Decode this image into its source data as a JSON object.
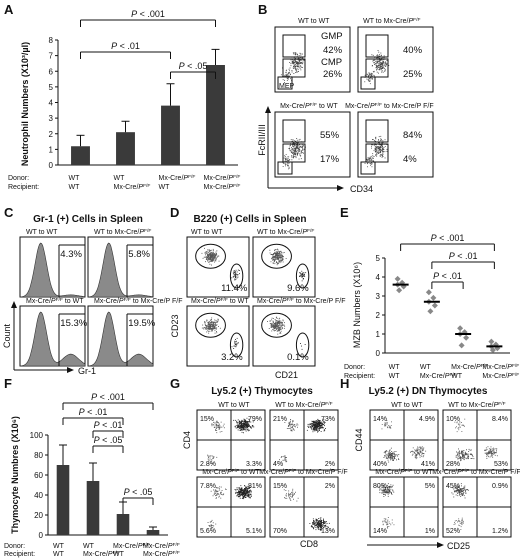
{
  "figure": {
    "panel_letters": [
      "A",
      "B",
      "C",
      "D",
      "E",
      "F",
      "G",
      "H"
    ]
  },
  "colors": {
    "bar": "#3a3a3a",
    "diamond": "#888888",
    "median": "#000000",
    "histogram": "#8a8a8a"
  },
  "axes_common": {
    "donor_label": "Donor:",
    "recipient_label": "Recipient:"
  },
  "chart_data": [
    {
      "panel": "A",
      "type": "bar",
      "ylabel": "Neutrophil Numbers (X10³/µl)",
      "ylim": [
        0,
        8
      ],
      "yticks": [
        "0",
        "1",
        "2",
        "3",
        "4",
        "5",
        "6",
        "7",
        "8"
      ],
      "categories": [
        {
          "donor": "WT",
          "recipient": "WT"
        },
        {
          "donor": "WT",
          "recipient": "Mx-Cre/P F/F"
        },
        {
          "donor": "Mx-Cre/P F/F",
          "recipient": "WT"
        },
        {
          "donor": "Mx-Cre/P F/F",
          "recipient": "Mx-Cre/P F/F"
        }
      ],
      "values": [
        1.2,
        2.1,
        3.8,
        6.4
      ],
      "errors": [
        0.7,
        0.7,
        1.4,
        1.0
      ],
      "brackets": [
        {
          "from": 0,
          "to": 3,
          "label": "P < .001"
        },
        {
          "from": 0,
          "to": 2,
          "label": "P < .01"
        },
        {
          "from": 2,
          "to": 3,
          "label": "P < .05"
        }
      ]
    },
    {
      "panel": "B",
      "type": "scatter",
      "ylabel": "FcRII/III",
      "xlabel": "CD34",
      "plots": [
        {
          "title": "WT to WT",
          "labels": [
            "GMP",
            "CMP",
            "MEP"
          ],
          "values": [
            "42%",
            "26%"
          ]
        },
        {
          "title": "WT to Mx-Cre/P F/F",
          "values": [
            "40%",
            "25%"
          ]
        },
        {
          "title": "Mx-Cre/P F/F to WT",
          "values": [
            "55%",
            "17%"
          ]
        },
        {
          "title": "Mx-Cre/P F/F to Mx-Cre/P F/F",
          "values": [
            "84%",
            "4%"
          ]
        }
      ]
    },
    {
      "panel": "C",
      "type": "area",
      "title": "Gr-1 (+) Cells in Spleen",
      "ylabel": "Count",
      "xlabel": "Gr-1",
      "plots": [
        {
          "title": "WT to WT",
          "value": "4.3%"
        },
        {
          "title": "WT to Mx-Cre/P F/F",
          "value": "5.8%"
        },
        {
          "title": "Mx-Cre/P F/F to WT",
          "value": "15.3%"
        },
        {
          "title": "Mx-Cre/P F/F to Mx-Cre/P F/F",
          "value": "19.5%"
        }
      ]
    },
    {
      "panel": "D",
      "type": "scatter",
      "title": "B220 (+) Cells in Spleen",
      "ylabel": "CD23",
      "xlabel": "CD21",
      "plots": [
        {
          "title": "WT to WT",
          "value": "11.4%"
        },
        {
          "title": "WT to Mx-Cre/P F/F",
          "value": "9.6%"
        },
        {
          "title": "Mx-Cre/P F/F to WT",
          "value": "3.2%"
        },
        {
          "title": "Mx-Cre/P F/F to Mx-Cre/P F/F",
          "value": "0.1%"
        }
      ]
    },
    {
      "panel": "E",
      "type": "scatter",
      "ylabel": "MZB Numbers (X10⁶)",
      "ylim": [
        0,
        5
      ],
      "yticks": [
        "0",
        "1",
        "2",
        "3",
        "4",
        "5"
      ],
      "categories": [
        {
          "donor": "WT",
          "recipient": "WT"
        },
        {
          "donor": "WT",
          "recipient": "Mx-Cre/P F/F"
        },
        {
          "donor": "Mx-Cre/P F/F",
          "recipient": "WT"
        },
        {
          "donor": "Mx-Cre/P F/F",
          "recipient": "Mx-Cre/P F/F"
        }
      ],
      "points": [
        [
          3.3,
          3.5,
          3.6,
          3.7,
          3.9
        ],
        [
          2.2,
          2.5,
          2.7,
          2.9,
          3.2
        ],
        [
          0.4,
          0.8,
          1.0,
          1.1,
          1.3
        ],
        [
          0.15,
          0.25,
          0.35,
          0.45,
          0.6
        ]
      ],
      "medians": [
        3.6,
        2.7,
        1.0,
        0.35
      ],
      "brackets": [
        {
          "from": 0,
          "to": 3,
          "label": "P < .001"
        },
        {
          "from": 1,
          "to": 3,
          "label": "P < .01"
        },
        {
          "from": 1,
          "to": 2,
          "label": "P < .01"
        }
      ]
    },
    {
      "panel": "F",
      "type": "bar",
      "ylabel": "Thymocyte Numbres (X10⁶)",
      "ylim": [
        0,
        100
      ],
      "yticks": [
        "0",
        "20",
        "40",
        "60",
        "80",
        "100"
      ],
      "categories": [
        {
          "donor": "WT",
          "recipient": "WT"
        },
        {
          "donor": "WT",
          "recipient": "Mx-Cre/P F/F"
        },
        {
          "donor": "Mx-Cre/P F/F",
          "recipient": "WT"
        },
        {
          "donor": "Mx-Cre/P F/F",
          "recipient": "Mx-Cre/P F/F"
        }
      ],
      "values": [
        70,
        54,
        21,
        5
      ],
      "errors": [
        20,
        18,
        12,
        3
      ],
      "brackets": [
        {
          "from": 0,
          "to": 3,
          "label": "P < .001"
        },
        {
          "from": 0,
          "to": 2,
          "label": "P < .01"
        },
        {
          "from": 1,
          "to": 2,
          "label": "P < .01"
        },
        {
          "from": 1,
          "to": 2,
          "label": "P < .05"
        },
        {
          "from": 2,
          "to": 3,
          "label": "P < .05"
        }
      ]
    },
    {
      "panel": "G",
      "type": "scatter",
      "title": "Ly5.2 (+) Thymocytes",
      "ylabel": "CD4",
      "xlabel": "CD8",
      "plots": [
        {
          "title": "WT to WT",
          "quadrants": [
            "15%",
            "79%",
            "2.8%",
            "3.3%"
          ]
        },
        {
          "title": "WT to Mx-Cre/P F/F",
          "quadrants": [
            "21%",
            "73%",
            "4%",
            "2%"
          ]
        },
        {
          "title": "Mx-Cre/P F/F to WT",
          "quadrants": [
            "7.8%",
            "81%",
            "5.6%",
            "5.1%"
          ]
        },
        {
          "title": "Mx-Cre/P F/F to Mx-Cre/P F/F",
          "quadrants": [
            "15%",
            "2%",
            "70%",
            "13%"
          ]
        }
      ]
    },
    {
      "panel": "H",
      "type": "scatter",
      "title": "Ly5.2 (+) DN Thymocytes",
      "ylabel": "CD44",
      "xlabel": "CD25",
      "plots": [
        {
          "title": "WT to WT",
          "quadrants": [
            "14%",
            "4.9%",
            "40%",
            "41%"
          ]
        },
        {
          "title": "WT to Mx-Cre/P F/F",
          "quadrants": [
            "10%",
            "8.4%",
            "28%",
            "53%"
          ]
        },
        {
          "title": "Mx-Cre/P F/F to WT",
          "quadrants": [
            "80%",
            "5%",
            "14%",
            "1%"
          ]
        },
        {
          "title": "Mx-Cre/P F/F to Mx-Cre/P F/F",
          "quadrants": [
            "45%",
            "0.9%",
            "52%",
            "1.2%"
          ]
        }
      ]
    }
  ]
}
